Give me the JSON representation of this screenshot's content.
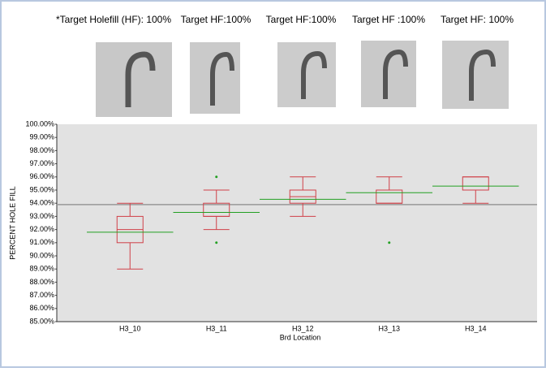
{
  "header": {
    "labels": [
      "*Target Holefill (HF): 100%",
      "Target HF:100%",
      "Target HF:100%",
      "Target HF :100%",
      "Target HF: 100%"
    ]
  },
  "chart_data": {
    "type": "box",
    "y_label": "PERCENT HOLE FILL",
    "x_label": "Brd Location",
    "categories": [
      "H3_10",
      "H3_11",
      "H3_12",
      "H3_13",
      "H3_14"
    ],
    "min": [
      89,
      92,
      93,
      94,
      94
    ],
    "q1": [
      91,
      93,
      94,
      94,
      95
    ],
    "median": [
      92,
      93,
      94.5,
      95,
      95
    ],
    "q3": [
      93,
      94,
      95,
      95,
      96
    ],
    "max": [
      94,
      95,
      96,
      96,
      96
    ],
    "mean": [
      91.8,
      93.3,
      94.3,
      94.8,
      95.3
    ],
    "outliers": [
      [],
      [
        91,
        96
      ],
      [],
      [
        91
      ],
      []
    ],
    "grand_mean": 93.9,
    "box_color": "#d04048",
    "mean_color": "#22a022",
    "grand_mean_color": "#999999",
    "ylim": [
      85,
      100
    ],
    "yticks": [
      {
        "value": 85,
        "label": "85.00%"
      },
      {
        "value": 86,
        "label": "86.00%"
      },
      {
        "value": 87,
        "label": "87.00%"
      },
      {
        "value": 88,
        "label": "88.00%"
      },
      {
        "value": 89,
        "label": "89.00%"
      },
      {
        "value": 90,
        "label": "90.00%"
      },
      {
        "value": 91,
        "label": "91.00%"
      },
      {
        "value": 92,
        "label": "92.00%"
      },
      {
        "value": 93,
        "label": "93.00%"
      },
      {
        "value": 94,
        "label": "94.00%"
      },
      {
        "value": 95,
        "label": "95.00%"
      },
      {
        "value": 96,
        "label": "96.00%"
      },
      {
        "value": 97,
        "label": "97.00%"
      },
      {
        "value": 98,
        "label": "98.00%"
      },
      {
        "value": 99,
        "label": "99.00%"
      },
      {
        "value": 100,
        "label": "100.00%"
      }
    ]
  }
}
